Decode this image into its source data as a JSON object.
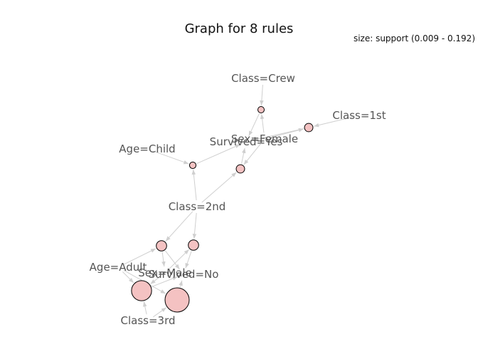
{
  "title": "Graph for 8 rules",
  "legend": "size: support (0.009 - 0.192)",
  "colors": {
    "edge": "#cfcfcf",
    "rule_fill": "#f4c2c2",
    "rule_stroke": "#000000",
    "label": "#555555"
  },
  "items": [
    {
      "id": "crew",
      "label": "Class=Crew"
    },
    {
      "id": "c1st",
      "label": "Class=1st"
    },
    {
      "id": "child",
      "label": "Age=Child"
    },
    {
      "id": "yes",
      "label": "Survived=Yes"
    },
    {
      "id": "fem",
      "label": "Sex=Female"
    },
    {
      "id": "c2nd",
      "label": "Class=2nd"
    },
    {
      "id": "adult",
      "label": "Age=Adult"
    },
    {
      "id": "male",
      "label": "Sex=Male"
    },
    {
      "id": "no",
      "label": "Survived=No"
    },
    {
      "id": "c3rd",
      "label": "Class=3rd"
    }
  ],
  "rules": [
    {
      "id": "r1",
      "support": 0.009
    },
    {
      "id": "r2",
      "support": 0.03
    },
    {
      "id": "r3",
      "support": 0.03
    },
    {
      "id": "r4",
      "support": 0.01
    },
    {
      "id": "r5",
      "support": 0.05
    },
    {
      "id": "r6",
      "support": 0.05
    },
    {
      "id": "r7",
      "support": 0.15
    },
    {
      "id": "r8",
      "support": 0.192
    }
  ],
  "edges": [
    [
      "crew",
      "r1"
    ],
    [
      "fem",
      "r1"
    ],
    [
      "r1",
      "yes"
    ],
    [
      "c1st",
      "r2"
    ],
    [
      "fem",
      "r2"
    ],
    [
      "r2",
      "yes"
    ],
    [
      "c2nd",
      "r3"
    ],
    [
      "fem",
      "r3"
    ],
    [
      "r3",
      "yes"
    ],
    [
      "child",
      "r4"
    ],
    [
      "c2nd",
      "r4"
    ],
    [
      "r4",
      "yes"
    ],
    [
      "c2nd",
      "r5"
    ],
    [
      "adult",
      "r5"
    ],
    [
      "r5",
      "male"
    ],
    [
      "r5",
      "no"
    ],
    [
      "c2nd",
      "r6"
    ],
    [
      "male",
      "r6"
    ],
    [
      "r6",
      "no"
    ],
    [
      "adult",
      "r7"
    ],
    [
      "male",
      "r7"
    ],
    [
      "c3rd",
      "r7"
    ],
    [
      "r7",
      "no"
    ],
    [
      "adult",
      "r8"
    ],
    [
      "c3rd",
      "r8"
    ],
    [
      "r8",
      "no"
    ]
  ]
}
